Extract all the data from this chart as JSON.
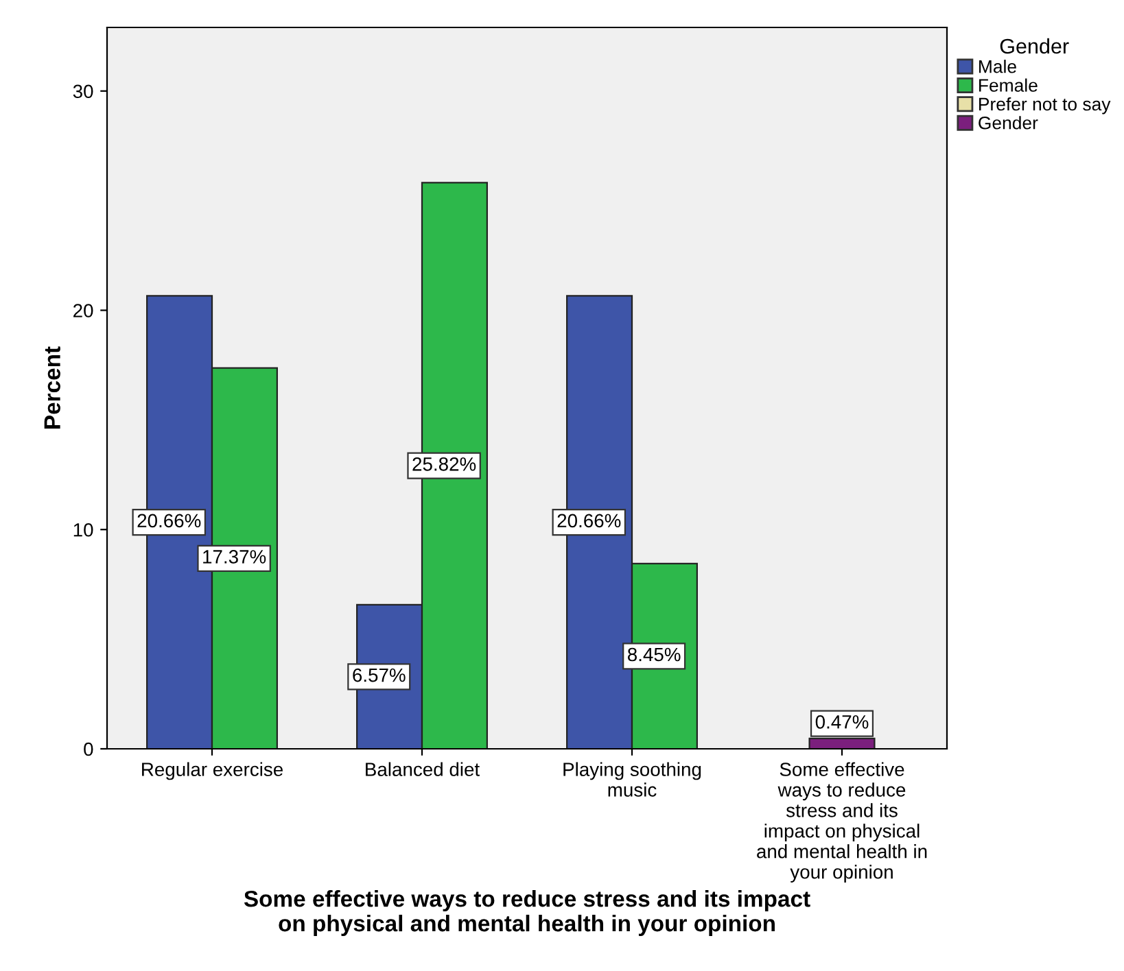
{
  "chart_data": {
    "type": "bar",
    "xlabel": "Some effective ways to reduce stress and its impact\non physical and mental health in your opinion",
    "ylabel": "Percent",
    "legend_title": "Gender",
    "categories": [
      "Regular exercise",
      "Balanced diet",
      "Playing soothing\nmusic",
      "Some effective\nways to reduce\nstress and its\nimpact on physical\nand mental health in\nyour opinion"
    ],
    "series": [
      {
        "name": "Male",
        "color": "#3e55a8",
        "values": [
          20.66,
          6.57,
          20.66,
          null
        ],
        "value_labels": [
          "20.66%",
          "6.57%",
          "20.66%",
          null
        ]
      },
      {
        "name": "Female",
        "color": "#2db84b",
        "values": [
          17.37,
          25.82,
          8.45,
          null
        ],
        "value_labels": [
          "17.37%",
          "25.82%",
          "8.45%",
          null
        ]
      },
      {
        "name": "Prefer not to say",
        "color": "#e8e0a8",
        "values": [
          null,
          null,
          null,
          null
        ]
      },
      {
        "name": "Gender",
        "color": "#7b1f7d",
        "values": [
          null,
          null,
          null,
          0.47
        ],
        "value_labels": [
          null,
          null,
          null,
          "0.47%"
        ]
      }
    ],
    "ylim": [
      0,
      32.9
    ],
    "yticks": [
      0,
      10,
      20,
      30
    ],
    "grid": false,
    "legend": "top right"
  }
}
